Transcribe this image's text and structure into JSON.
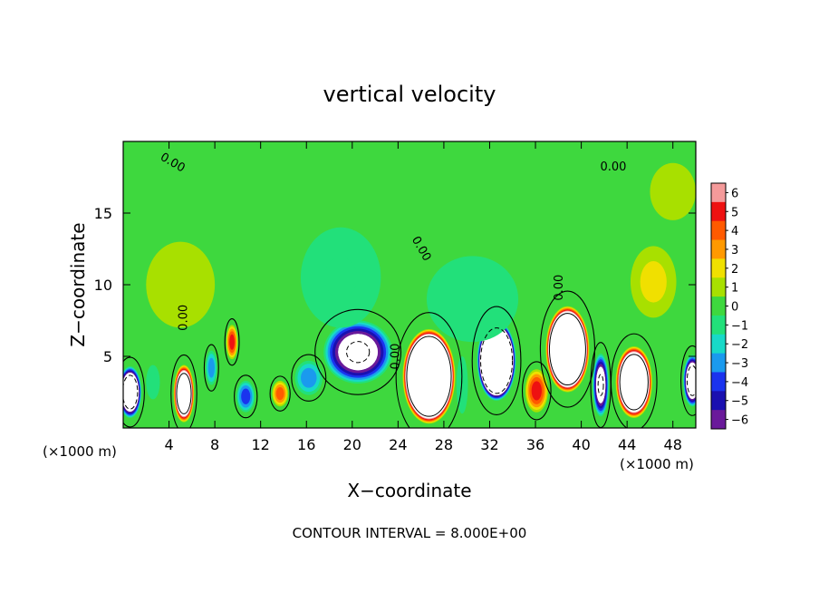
{
  "chart_data": {
    "type": "heatmap",
    "title": "vertical velocity",
    "xlabel": "X−coordinate",
    "ylabel": "Z−coordinate",
    "x_unit_left": "(×1000 m)",
    "x_unit_right": "(×1000 m)",
    "footer": "CONTOUR INTERVAL = 8.000E+00",
    "xlim": [
      0,
      50
    ],
    "ylim": [
      0,
      20
    ],
    "x_ticks": [
      {
        "value": 4,
        "label": "4"
      },
      {
        "value": 8,
        "label": "8"
      },
      {
        "value": 12,
        "label": "12"
      },
      {
        "value": 16,
        "label": "16"
      },
      {
        "value": 20,
        "label": "20"
      },
      {
        "value": 24,
        "label": "24"
      },
      {
        "value": 28,
        "label": "28"
      },
      {
        "value": 32,
        "label": "32"
      },
      {
        "value": 36,
        "label": "36"
      },
      {
        "value": 40,
        "label": "40"
      },
      {
        "value": 44,
        "label": "44"
      },
      {
        "value": 48,
        "label": "48"
      }
    ],
    "y_ticks": [
      {
        "value": 5,
        "label": "5"
      },
      {
        "value": 10,
        "label": "10"
      },
      {
        "value": 15,
        "label": "15"
      }
    ],
    "colorbar": {
      "levels": [
        6,
        5,
        4,
        3,
        2,
        1,
        0,
        -1,
        -2,
        -3,
        -4,
        -5,
        -6
      ],
      "labels": [
        "6",
        "5",
        "4",
        "3",
        "2",
        "1",
        "0",
        "−1",
        "−2",
        "−3",
        "−4",
        "−5",
        "−6"
      ],
      "colors": [
        "#f49a9a",
        "#ee1111",
        "#ff5a00",
        "#ff9900",
        "#f0e000",
        "#a8e000",
        "#3ed83e",
        "#22e07a",
        "#18d9c8",
        "#1a9aee",
        "#1a33ee",
        "#1a10b0",
        "#6a1a9a"
      ]
    },
    "background_value": 0.4,
    "contour_labels": [
      {
        "x": 4.3,
        "y": 18.5,
        "text": "0.00",
        "angle": 30
      },
      {
        "x": 42.8,
        "y": 18.2,
        "text": "0.00",
        "angle": 0
      },
      {
        "x": 26.0,
        "y": 12.5,
        "text": "0.00",
        "angle": 60
      },
      {
        "x": 38.1,
        "y": 9.8,
        "text": "0.00",
        "angle": -90
      },
      {
        "x": 5.3,
        "y": 7.7,
        "text": "0.00",
        "angle": -90
      },
      {
        "x": 23.8,
        "y": 5.0,
        "text": "0.00",
        "angle": -90
      }
    ],
    "features": [
      {
        "x": 26.7,
        "y": 3.6,
        "value": 28,
        "rx": 2.3,
        "ry": 3.3
      },
      {
        "x": 38.8,
        "y": 5.5,
        "value": 26,
        "rx": 1.9,
        "ry": 3.0
      },
      {
        "x": 44.6,
        "y": 3.2,
        "value": 20,
        "rx": 1.6,
        "ry": 2.5
      },
      {
        "x": 5.3,
        "y": 2.4,
        "value": 16,
        "rx": 0.9,
        "ry": 2.0
      },
      {
        "x": 9.5,
        "y": 6.0,
        "value": 5,
        "rx": 0.5,
        "ry": 1.2
      },
      {
        "x": 13.7,
        "y": 2.4,
        "value": 4,
        "rx": 0.7,
        "ry": 0.9
      },
      {
        "x": 36.1,
        "y": 2.6,
        "value": 5,
        "rx": 1.0,
        "ry": 1.5
      },
      {
        "x": 46.3,
        "y": 10.2,
        "value": 1.5,
        "rx": 2.0,
        "ry": 2.5
      },
      {
        "x": 20.5,
        "y": 5.3,
        "value": -9,
        "rx": 3.0,
        "ry": 2.2
      },
      {
        "x": 32.6,
        "y": 4.7,
        "value": -24,
        "rx": 1.7,
        "ry": 2.8
      },
      {
        "x": 41.7,
        "y": 3.0,
        "value": -9,
        "rx": 0.7,
        "ry": 2.2
      },
      {
        "x": 0.6,
        "y": 2.5,
        "value": -14,
        "rx": 1.0,
        "ry": 1.8
      },
      {
        "x": 49.7,
        "y": 3.3,
        "value": -12,
        "rx": 0.8,
        "ry": 1.8
      },
      {
        "x": 10.7,
        "y": 2.2,
        "value": -4,
        "rx": 0.8,
        "ry": 1.1
      },
      {
        "x": 7.7,
        "y": 4.2,
        "value": -3,
        "rx": 0.5,
        "ry": 1.2
      },
      {
        "x": 16.2,
        "y": 3.5,
        "value": -3,
        "rx": 1.2,
        "ry": 1.2
      },
      {
        "x": 2.6,
        "y": 3.2,
        "value": -1.5,
        "rx": 0.6,
        "ry": 1.2
      },
      {
        "x": 29.6,
        "y": 3.0,
        "value": -1.5,
        "rx": 0.5,
        "ry": 2.0
      },
      {
        "x": 19.0,
        "y": 10.5,
        "value": -1.2,
        "rx": 3.5,
        "ry": 3.5
      },
      {
        "x": 30.5,
        "y": 9.0,
        "value": -0.8,
        "rx": 4.0,
        "ry": 3.0
      },
      {
        "x": 5.0,
        "y": 10.0,
        "value": 0.8,
        "rx": 3.0,
        "ry": 3.0
      },
      {
        "x": 48.0,
        "y": 16.5,
        "value": 1.0,
        "rx": 2.0,
        "ry": 2.0
      }
    ]
  }
}
